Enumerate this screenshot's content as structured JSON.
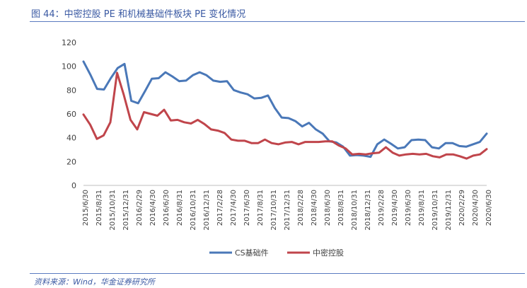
{
  "figure": {
    "title": "图 44：中密控股 PE 和机械基础件板块 PE 变化情况",
    "source": "资料来源：Wind，华金证券研究所"
  },
  "colors": {
    "series_1": "#4a78b8",
    "series_2": "#c0454b",
    "axis": "#bfbfbf"
  },
  "chart_data": {
    "type": "line",
    "title": "",
    "xlabel": "",
    "ylabel": "",
    "ylim": [
      0,
      120
    ],
    "yticks": [
      "0",
      "20",
      "40",
      "60",
      "80",
      "100",
      "120"
    ],
    "x_tick_labels": [
      "2015/6/30",
      "2015/8/31",
      "2015/10/31",
      "2015/12/31",
      "2016/2/29",
      "2016/4/30",
      "2016/6/30",
      "2016/8/31",
      "2016/10/31",
      "2016/12/31",
      "2017/2/28",
      "2017/4/30",
      "2017/6/30",
      "2017/8/31",
      "2017/10/31",
      "2017/12/31",
      "2018/2/28",
      "2018/4/30",
      "2018/6/30",
      "2018/8/31",
      "2018/10/31",
      "2018/12/31",
      "2019/2/28",
      "2019/4/30",
      "2019/6/30",
      "2019/8/31",
      "2019/10/31",
      "2019/12/31",
      "2020/2/29",
      "2020/4/30",
      "2020/6/30"
    ],
    "series": [
      {
        "name": "CS基础件",
        "values": [
          104,
          93,
          81,
          80.5,
          90,
          98.5,
          102,
          71,
          69,
          79,
          89.5,
          90,
          95,
          91.5,
          87.5,
          88,
          92.5,
          95,
          92.5,
          88,
          87,
          87.5,
          80,
          78,
          76.5,
          73,
          73.5,
          75.5,
          65,
          57,
          56.5,
          54,
          49.5,
          52.5,
          47,
          43.5,
          37,
          36,
          32.5,
          25,
          25.5,
          25,
          24,
          34.5,
          38.5,
          35,
          31,
          32,
          38,
          38.5,
          38,
          32,
          31,
          35.5,
          35.5,
          33,
          32.5,
          34.5,
          36.5,
          43.5
        ]
      },
      {
        "name": "中密控股",
        "values": [
          59.5,
          51,
          39,
          42,
          53,
          94.5,
          76,
          55,
          47,
          61.5,
          60,
          58.5,
          63.5,
          54.5,
          55,
          53,
          52,
          55,
          51.5,
          47,
          46,
          44,
          38.5,
          37.5,
          37.5,
          35.5,
          35.5,
          38.5,
          35.5,
          34.5,
          36,
          36.5,
          34.5,
          36.5,
          36.5,
          36.5,
          37,
          37,
          33.5,
          31,
          26,
          26.5,
          26,
          27,
          27.5,
          32,
          27.5,
          25,
          26,
          26.5,
          26,
          26.5,
          24.5,
          23.5,
          26,
          26,
          24.5,
          22.5,
          25,
          26,
          30.5
        ]
      }
    ]
  }
}
